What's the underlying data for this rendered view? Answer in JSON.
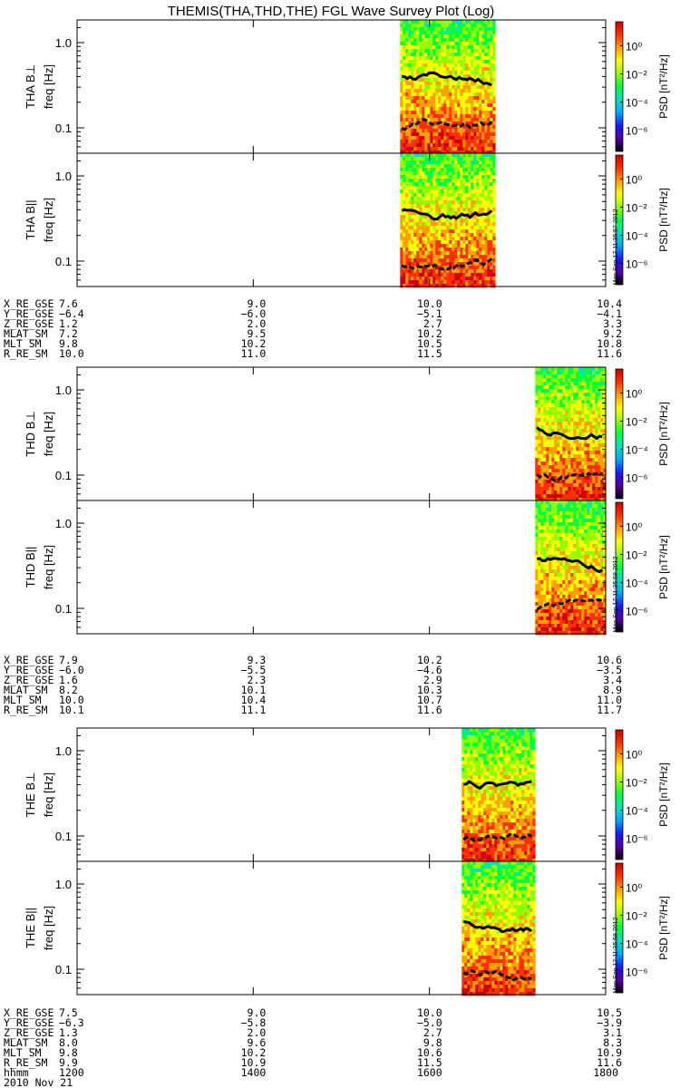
{
  "title": "THEMIS(THA,THD,THE) FGL Wave Survey Plot (Log)",
  "date_label": "2010 Nov 21",
  "colorbar": {
    "label": "PSD [nT²/Hz]",
    "ticks": [
      "10⁰",
      "10⁻²",
      "10⁻⁴",
      "10⁻⁶"
    ],
    "tick_exponents": [
      0,
      -2,
      -4,
      -6
    ],
    "colors": [
      "#000000",
      "#5a00a0",
      "#1a1aff",
      "#00a8ff",
      "#00e0c0",
      "#00ff40",
      "#90ff00",
      "#ffff00",
      "#ffa000",
      "#ff3000",
      "#d00000"
    ],
    "stamp": "Mon Sep 17 11:35:57 2012",
    "stamps": [
      "Mon Sep 17 11:35:57 2012",
      "Mon Sep 17 11:35:58 2012",
      "Mon Sep 17 11:35:58 2012"
    ]
  },
  "chart_data": {
    "type": "heatmap",
    "x_axis": {
      "label": "hhmm",
      "range": [
        "1200",
        "1800"
      ],
      "ticks": [
        "1200",
        "1400",
        "1600",
        "1800"
      ]
    },
    "y_axis": {
      "label": "freq [Hz]",
      "scale": "log",
      "ticks": [
        "1.0",
        "0.1"
      ]
    },
    "probes": [
      {
        "name": "THA",
        "panels": [
          {
            "label": "THA B⊥",
            "data_start": "1540",
            "data_end": "1644"
          },
          {
            "label": "THA B||",
            "data_start": "1540",
            "data_end": "1644"
          }
        ],
        "ephemeris": [
          {
            "name": "X_RE_GSE",
            "values": [
              "7.6",
              "9.0",
              "10.0",
              "10.4"
            ]
          },
          {
            "name": "Y_RE_GSE",
            "values": [
              "−6.4",
              "−6.0",
              "−5.1",
              "−4.1"
            ]
          },
          {
            "name": "Z_RE_GSE",
            "values": [
              "1.2",
              "2.0",
              "2.7",
              "3.3"
            ]
          },
          {
            "name": "MLAT_SM",
            "values": [
              "7.2",
              "9.5",
              "10.2",
              "9.2"
            ]
          },
          {
            "name": "MLT_SM",
            "values": [
              "9.8",
              "10.2",
              "10.5",
              "10.8"
            ]
          },
          {
            "name": "R_RE_SM",
            "values": [
              "10.0",
              "11.0",
              "11.5",
              "11.6"
            ]
          }
        ]
      },
      {
        "name": "THD",
        "panels": [
          {
            "label": "THD B⊥",
            "data_start": "1712",
            "data_end": "1800"
          },
          {
            "label": "THD B||",
            "data_start": "1712",
            "data_end": "1800"
          }
        ],
        "ephemeris": [
          {
            "name": "X_RE_GSE",
            "values": [
              "7.9",
              "9.3",
              "10.2",
              "10.6"
            ]
          },
          {
            "name": "Y_RE_GSE",
            "values": [
              "−6.0",
              "−5.5",
              "−4.6",
              "−3.5"
            ]
          },
          {
            "name": "Z_RE_GSE",
            "values": [
              "1.6",
              "2.3",
              "2.9",
              "3.4"
            ]
          },
          {
            "name": "MLAT_SM",
            "values": [
              "8.2",
              "10.1",
              "10.3",
              "8.9"
            ]
          },
          {
            "name": "MLT_SM",
            "values": [
              "10.0",
              "10.4",
              "10.7",
              "11.0"
            ]
          },
          {
            "name": "R_RE_SM",
            "values": [
              "10.1",
              "11.1",
              "11.6",
              "11.7"
            ]
          }
        ]
      },
      {
        "name": "THE",
        "panels": [
          {
            "label": "THE B⊥",
            "data_start": "1622",
            "data_end": "1712"
          },
          {
            "label": "THE B||",
            "data_start": "1622",
            "data_end": "1712"
          }
        ],
        "ephemeris": [
          {
            "name": "X_RE_GSE",
            "values": [
              "7.5",
              "9.0",
              "10.0",
              "10.5"
            ]
          },
          {
            "name": "Y_RE_GSE",
            "values": [
              "−6.3",
              "−5.8",
              "−5.0",
              "−3.9"
            ]
          },
          {
            "name": "Z_RE_GSE",
            "values": [
              "1.3",
              "2.0",
              "2.7",
              "3.1"
            ]
          },
          {
            "name": "MLAT_SM",
            "values": [
              "8.0",
              "9.6",
              "9.8",
              "8.3"
            ]
          },
          {
            "name": "MLT_SM",
            "values": [
              "9.8",
              "10.2",
              "10.6",
              "10.9"
            ]
          },
          {
            "name": "R_RE_SM",
            "values": [
              "9.9",
              "10.9",
              "11.5",
              "11.6"
            ]
          }
        ]
      }
    ]
  }
}
